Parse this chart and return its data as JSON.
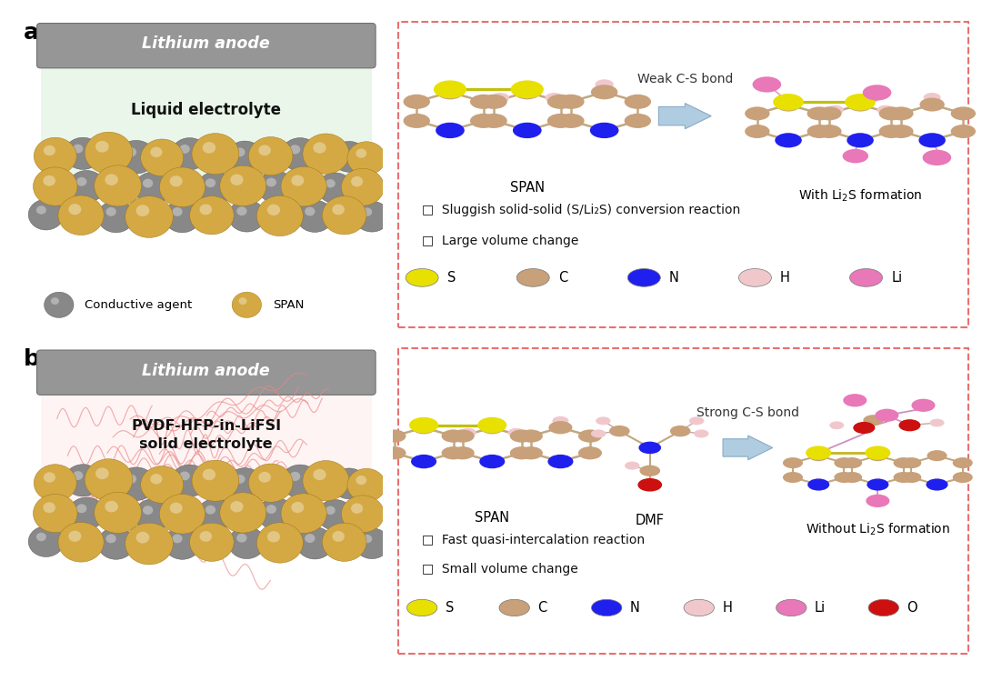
{
  "bg_color": "#ffffff",
  "span_gold": "#D4A843",
  "gray_sphere": "#888888",
  "S_color": "#e8e000",
  "C_color": "#c8a07a",
  "N_color": "#2020ee",
  "H_color": "#f0c8cc",
  "Li_color": "#e878b8",
  "O_color": "#cc1010",
  "bond_color": "#c0a880",
  "arrow_fill": "#b0cce0",
  "arrow_edge": "#88aac8",
  "box_border": "#e87070",
  "liquid_bg": "#eaf6ea",
  "solid_bg": "#fff4f4",
  "fiber_color": "#e88888",
  "anode_color": "#969696",
  "anode_text_color": "#ffffff",
  "weak_cs": "Weak C-S bond",
  "strong_cs": "Strong C-S bond",
  "bullet1a": "□  Sluggish solid-solid (S/Li₂S) conversion reaction",
  "bullet2a": "□  Large volume change",
  "bullet1b": "□  Fast quasi-intercalation reaction",
  "bullet2b": "□  Small volume change",
  "leg_a_colors": [
    "#e8e000",
    "#c8a07a",
    "#2020ee",
    "#f0c8cc",
    "#e878b8"
  ],
  "leg_a_labels": [
    "S",
    "C",
    "N",
    "H",
    "Li"
  ],
  "leg_b_colors": [
    "#e8e000",
    "#c8a07a",
    "#2020ee",
    "#f0c8cc",
    "#e878b8",
    "#cc1010"
  ],
  "leg_b_labels": [
    "S",
    "C",
    "N",
    "H",
    "Li",
    "O"
  ]
}
